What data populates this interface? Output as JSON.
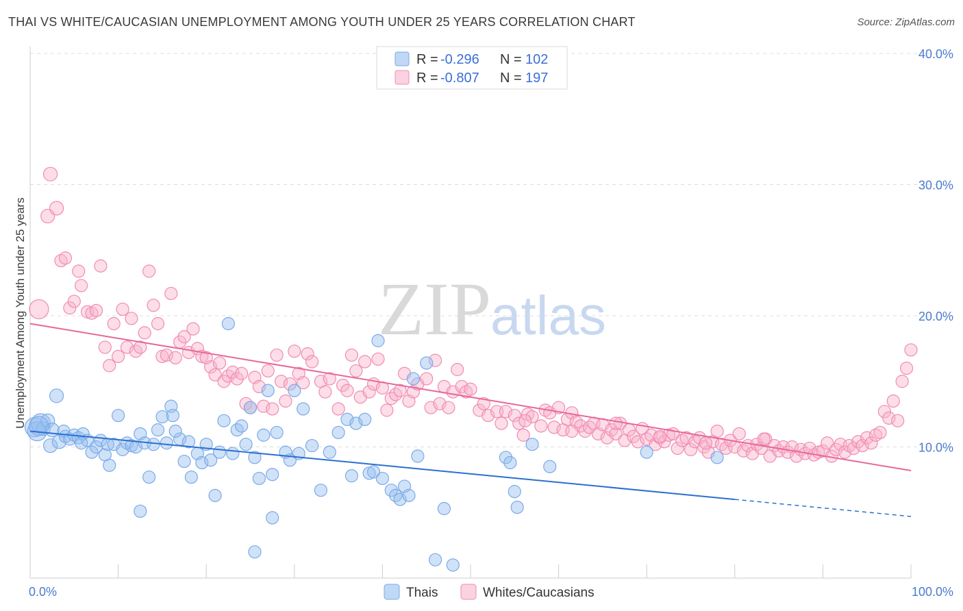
{
  "title": "THAI VS WHITE/CAUCASIAN UNEMPLOYMENT AMONG YOUTH UNDER 25 YEARS CORRELATION CHART",
  "source": "Source: ZipAtlas.com",
  "watermark": {
    "zip": "ZIP",
    "atlas": "atlas"
  },
  "colors": {
    "blue": "#7aaae8",
    "blue_fill": "rgba(150,190,240,0.45)",
    "blue_line": "#2a6fd0",
    "pink": "#f08cb0",
    "pink_fill": "rgba(248,180,205,0.45)",
    "pink_line": "#e8679a",
    "grid": "#dddddd",
    "tick": "#4a7bd0"
  },
  "legend": {
    "rows": [
      {
        "r_label": "R =",
        "r_value": "-0.296",
        "n_label": "N =",
        "n_value": "102"
      },
      {
        "r_label": "R =",
        "r_value": "-0.807",
        "n_label": "N =",
        "n_value": "197"
      }
    ]
  },
  "bottom_legend": [
    "Thais",
    "Whites/Caucasians"
  ],
  "chart_data": {
    "type": "scatter",
    "title": "THAI VS WHITE/CAUCASIAN UNEMPLOYMENT AMONG YOUTH UNDER 25 YEARS CORRELATION CHART",
    "xlabel": "",
    "ylabel": "Unemployment Among Youth under 25 years",
    "xlim": [
      0,
      100
    ],
    "ylim": [
      0,
      40
    ],
    "x_tick_labels": [
      "0.0%",
      "100.0%"
    ],
    "y_ticks": [
      10,
      20,
      30,
      40
    ],
    "y_tick_labels": [
      "10.0%",
      "20.0%",
      "30.0%",
      "40.0%"
    ],
    "series": [
      {
        "name": "Thais",
        "r": -0.296,
        "n": 102,
        "trend": {
          "x0": 0,
          "y0": 11.2,
          "x1": 80,
          "y1": 6.0,
          "dash_to_x": 100,
          "dash_to_y": 4.7
        },
        "points": [
          [
            0.5,
            11.5
          ],
          [
            0.8,
            11.2
          ],
          [
            1.2,
            11.8
          ],
          [
            1.5,
            11.4
          ],
          [
            2,
            12.0
          ],
          [
            2.3,
            10.1
          ],
          [
            3,
            13.9
          ],
          [
            3.3,
            10.4
          ],
          [
            3.8,
            11.2
          ],
          [
            4,
            10.8
          ],
          [
            4.5,
            10.6
          ],
          [
            5,
            10.9
          ],
          [
            5.5,
            10.7
          ],
          [
            6,
            11.0
          ],
          [
            6.5,
            10.5
          ],
          [
            7,
            9.6
          ],
          [
            7.5,
            10.0
          ],
          [
            8,
            10.5
          ],
          [
            8.5,
            9.4
          ],
          [
            8.8,
            10.2
          ],
          [
            9,
            8.6
          ],
          [
            9.5,
            10.2
          ],
          [
            10,
            12.4
          ],
          [
            10.5,
            9.8
          ],
          [
            11,
            10.3
          ],
          [
            11.5,
            10.1
          ],
          [
            12,
            10.0
          ],
          [
            12.5,
            11.0
          ],
          [
            13,
            10.3
          ],
          [
            13.5,
            7.7
          ],
          [
            14,
            10.2
          ],
          [
            14.5,
            11.3
          ],
          [
            15,
            12.3
          ],
          [
            15.5,
            10.3
          ],
          [
            16,
            13.1
          ],
          [
            16.2,
            12.4
          ],
          [
            17,
            10.6
          ],
          [
            17.5,
            8.9
          ],
          [
            18,
            10.4
          ],
          [
            18.3,
            7.7
          ],
          [
            19,
            9.5
          ],
          [
            19.5,
            8.8
          ],
          [
            20,
            10.2
          ],
          [
            20.5,
            9.0
          ],
          [
            21,
            6.3
          ],
          [
            21.5,
            9.6
          ],
          [
            22,
            12.0
          ],
          [
            22.5,
            19.4
          ],
          [
            23,
            9.5
          ],
          [
            23.5,
            11.3
          ],
          [
            24,
            11.6
          ],
          [
            24.5,
            10.2
          ],
          [
            25,
            13.0
          ],
          [
            25.5,
            9.2
          ],
          [
            26,
            7.6
          ],
          [
            26.5,
            10.9
          ],
          [
            27,
            14.3
          ],
          [
            27.5,
            7.9
          ],
          [
            28,
            11.1
          ],
          [
            29,
            9.6
          ],
          [
            29.5,
            9.0
          ],
          [
            30,
            14.3
          ],
          [
            30.5,
            9.5
          ],
          [
            31,
            12.9
          ],
          [
            32,
            10.1
          ],
          [
            33,
            6.7
          ],
          [
            34,
            9.6
          ],
          [
            35,
            11.1
          ],
          [
            36,
            12.1
          ],
          [
            36.5,
            7.8
          ],
          [
            37,
            11.8
          ],
          [
            38,
            12.1
          ],
          [
            38.5,
            8.0
          ],
          [
            39,
            8.1
          ],
          [
            39.5,
            18.1
          ],
          [
            40,
            7.6
          ],
          [
            41,
            6.7
          ],
          [
            41.5,
            6.3
          ],
          [
            42,
            6.0
          ],
          [
            42.5,
            7.0
          ],
          [
            43,
            6.3
          ],
          [
            43.5,
            15.2
          ],
          [
            44,
            9.3
          ],
          [
            45,
            16.4
          ],
          [
            46,
            1.4
          ],
          [
            47,
            5.3
          ],
          [
            48,
            1.0
          ],
          [
            25.5,
            2.0
          ],
          [
            27.5,
            4.6
          ],
          [
            12.5,
            5.1
          ],
          [
            54,
            9.2
          ],
          [
            54.5,
            8.8
          ],
          [
            55,
            6.6
          ],
          [
            55.3,
            5.4
          ],
          [
            57,
            10.2
          ],
          [
            59,
            8.5
          ],
          [
            70,
            9.6
          ],
          [
            78,
            9.2
          ],
          [
            1.0,
            11.6
          ],
          [
            2.5,
            11.3
          ],
          [
            5.8,
            10.3
          ],
          [
            16.5,
            11.2
          ]
        ]
      },
      {
        "name": "Whites/Caucasians",
        "r": -0.807,
        "n": 197,
        "trend": {
          "x0": 0,
          "y0": 19.4,
          "x1": 100,
          "y1": 8.2
        },
        "points": [
          [
            1,
            20.5
          ],
          [
            2,
            27.6
          ],
          [
            2.3,
            30.8
          ],
          [
            3,
            28.2
          ],
          [
            3.5,
            24.2
          ],
          [
            4,
            24.4
          ],
          [
            4.5,
            20.6
          ],
          [
            5,
            21.1
          ],
          [
            5.5,
            23.4
          ],
          [
            5.8,
            22.3
          ],
          [
            6.5,
            20.3
          ],
          [
            7,
            20.2
          ],
          [
            7.5,
            20.4
          ],
          [
            8,
            23.8
          ],
          [
            8.5,
            17.6
          ],
          [
            9,
            16.2
          ],
          [
            9.5,
            19.4
          ],
          [
            10,
            16.9
          ],
          [
            10.5,
            20.5
          ],
          [
            11,
            17.6
          ],
          [
            11.5,
            19.8
          ],
          [
            12,
            17.3
          ],
          [
            12.5,
            17.6
          ],
          [
            13,
            18.7
          ],
          [
            13.5,
            23.4
          ],
          [
            14,
            20.8
          ],
          [
            14.5,
            19.4
          ],
          [
            15,
            16.9
          ],
          [
            15.5,
            17.0
          ],
          [
            16,
            21.7
          ],
          [
            16.5,
            16.8
          ],
          [
            17,
            18.0
          ],
          [
            17.5,
            18.4
          ],
          [
            18,
            17.2
          ],
          [
            18.5,
            19.0
          ],
          [
            19,
            17.5
          ],
          [
            19.5,
            16.9
          ],
          [
            20,
            16.8
          ],
          [
            20.5,
            16.1
          ],
          [
            21,
            15.5
          ],
          [
            21.5,
            16.4
          ],
          [
            22,
            15.0
          ],
          [
            22.5,
            15.4
          ],
          [
            23,
            15.7
          ],
          [
            23.5,
            15.2
          ],
          [
            24,
            15.6
          ],
          [
            24.5,
            13.3
          ],
          [
            25,
            13.0
          ],
          [
            25.5,
            15.3
          ],
          [
            26,
            14.6
          ],
          [
            26.5,
            13.1
          ],
          [
            27,
            15.8
          ],
          [
            27.5,
            12.9
          ],
          [
            28,
            17.0
          ],
          [
            28.5,
            15.0
          ],
          [
            29,
            13.5
          ],
          [
            29.5,
            14.8
          ],
          [
            30,
            17.3
          ],
          [
            30.5,
            15.6
          ],
          [
            31,
            14.9
          ],
          [
            31.5,
            17.1
          ],
          [
            32,
            16.5
          ],
          [
            33,
            15.0
          ],
          [
            33.5,
            14.2
          ],
          [
            34,
            15.2
          ],
          [
            35,
            12.9
          ],
          [
            35.5,
            14.7
          ],
          [
            36,
            14.3
          ],
          [
            36.5,
            17.0
          ],
          [
            37,
            15.8
          ],
          [
            37.5,
            13.8
          ],
          [
            38,
            16.5
          ],
          [
            38.5,
            14.2
          ],
          [
            39,
            14.8
          ],
          [
            39.5,
            16.7
          ],
          [
            40,
            14.5
          ],
          [
            40.5,
            12.8
          ],
          [
            41,
            13.7
          ],
          [
            41.5,
            14.0
          ],
          [
            42,
            14.3
          ],
          [
            42.5,
            15.6
          ],
          [
            43,
            13.5
          ],
          [
            43.5,
            14.2
          ],
          [
            44,
            14.8
          ],
          [
            45,
            15.2
          ],
          [
            45.5,
            13.0
          ],
          [
            46,
            16.6
          ],
          [
            46.5,
            13.3
          ],
          [
            47,
            14.6
          ],
          [
            47.5,
            13.0
          ],
          [
            48,
            14.2
          ],
          [
            48.5,
            15.9
          ],
          [
            49,
            14.6
          ],
          [
            49.5,
            14.2
          ],
          [
            50,
            14.4
          ],
          [
            51,
            12.8
          ],
          [
            51.5,
            13.3
          ],
          [
            52,
            12.4
          ],
          [
            53,
            12.7
          ],
          [
            53.5,
            11.8
          ],
          [
            54,
            12.7
          ],
          [
            55,
            12.4
          ],
          [
            55.5,
            11.8
          ],
          [
            56,
            10.9
          ],
          [
            56.5,
            12.5
          ],
          [
            57,
            12.3
          ],
          [
            58,
            11.6
          ],
          [
            58.5,
            12.8
          ],
          [
            59,
            12.6
          ],
          [
            59.5,
            11.5
          ],
          [
            60,
            13.0
          ],
          [
            60.5,
            11.3
          ],
          [
            61,
            12.1
          ],
          [
            61.5,
            12.6
          ],
          [
            62,
            11.9
          ],
          [
            62.5,
            11.6
          ],
          [
            63,
            11.2
          ],
          [
            63.5,
            11.5
          ],
          [
            64,
            11.8
          ],
          [
            64.5,
            11.0
          ],
          [
            65,
            11.7
          ],
          [
            65.5,
            10.7
          ],
          [
            66,
            11.3
          ],
          [
            66.5,
            11.0
          ],
          [
            67,
            11.8
          ],
          [
            67.5,
            10.5
          ],
          [
            68,
            11.3
          ],
          [
            68.5,
            10.8
          ],
          [
            69,
            10.4
          ],
          [
            69.5,
            11.4
          ],
          [
            70,
            10.6
          ],
          [
            70.5,
            10.9
          ],
          [
            71,
            10.2
          ],
          [
            71.5,
            10.7
          ],
          [
            72,
            10.4
          ],
          [
            72.5,
            10.9
          ],
          [
            73,
            11.0
          ],
          [
            73.5,
            9.9
          ],
          [
            74,
            10.5
          ],
          [
            74.5,
            10.7
          ],
          [
            75,
            9.8
          ],
          [
            75.5,
            10.4
          ],
          [
            76,
            10.7
          ],
          [
            76.5,
            10.0
          ],
          [
            77,
            9.6
          ],
          [
            77.5,
            10.4
          ],
          [
            78,
            11.2
          ],
          [
            78.5,
            10.2
          ],
          [
            79,
            9.9
          ],
          [
            79.5,
            10.5
          ],
          [
            80,
            10.0
          ],
          [
            80.5,
            11.0
          ],
          [
            81,
            9.7
          ],
          [
            81.5,
            10.1
          ],
          [
            82,
            9.5
          ],
          [
            82.5,
            10.2
          ],
          [
            83,
            9.9
          ],
          [
            83.5,
            10.6
          ],
          [
            84,
            9.3
          ],
          [
            84.5,
            10.1
          ],
          [
            85,
            9.7
          ],
          [
            85.5,
            10.0
          ],
          [
            86,
            9.6
          ],
          [
            86.5,
            10.0
          ],
          [
            87,
            9.3
          ],
          [
            87.5,
            9.8
          ],
          [
            88,
            9.5
          ],
          [
            88.5,
            9.9
          ],
          [
            89,
            9.4
          ],
          [
            89.5,
            9.6
          ],
          [
            90,
            9.7
          ],
          [
            90.5,
            10.3
          ],
          [
            91,
            9.3
          ],
          [
            91.5,
            9.8
          ],
          [
            92,
            10.2
          ],
          [
            92.5,
            9.6
          ],
          [
            93,
            10.1
          ],
          [
            93.5,
            9.9
          ],
          [
            94,
            10.4
          ],
          [
            94.5,
            10.1
          ],
          [
            95,
            10.7
          ],
          [
            95.5,
            10.3
          ],
          [
            96,
            10.9
          ],
          [
            96.5,
            11.1
          ],
          [
            97,
            12.7
          ],
          [
            97.5,
            12.2
          ],
          [
            98,
            13.5
          ],
          [
            98.5,
            12.0
          ],
          [
            99,
            15.0
          ],
          [
            99.5,
            16.0
          ],
          [
            100,
            17.4
          ],
          [
            66.5,
            11.8
          ],
          [
            71.5,
            10.8
          ],
          [
            61.5,
            11.2
          ],
          [
            56.2,
            12.0
          ],
          [
            83.3,
            10.6
          ],
          [
            76.7,
            10.3
          ]
        ]
      }
    ]
  }
}
